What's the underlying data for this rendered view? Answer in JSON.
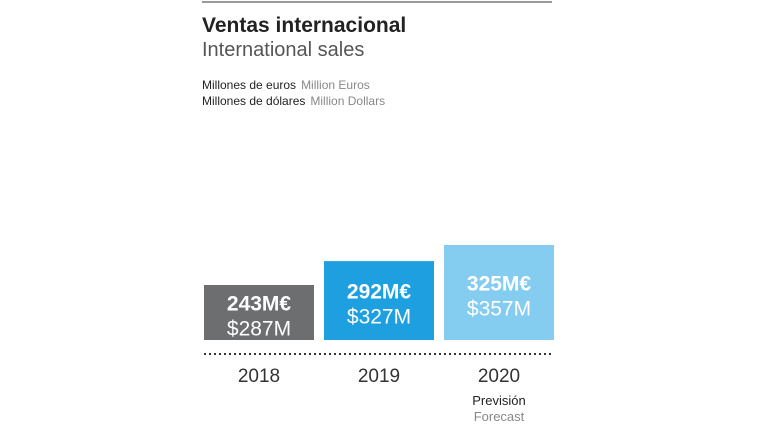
{
  "chart_data": {
    "type": "bar",
    "title": "Ventas internacional",
    "subtitle": "International sales",
    "units": [
      {
        "es": "Millones de euros",
        "en": "Million Euros"
      },
      {
        "es": "Millones de dólares",
        "en": "Million Dollars"
      }
    ],
    "categories": [
      "2018",
      "2019",
      "2020"
    ],
    "series": [
      {
        "values": [
          243,
          292,
          325
        ]
      },
      {
        "values": [
          287,
          327,
          357
        ]
      }
    ],
    "value_labels_eur": [
      "243M€",
      "292M€",
      "325M€"
    ],
    "value_labels_usd": [
      "$287M",
      "$327M",
      "$357M"
    ],
    "category_notes": [
      null,
      null,
      {
        "es": "Previsión",
        "en": "Forecast"
      }
    ],
    "colors": [
      "#6d6e70",
      "#1ea0e0",
      "#85cdf0"
    ],
    "grid": false
  }
}
